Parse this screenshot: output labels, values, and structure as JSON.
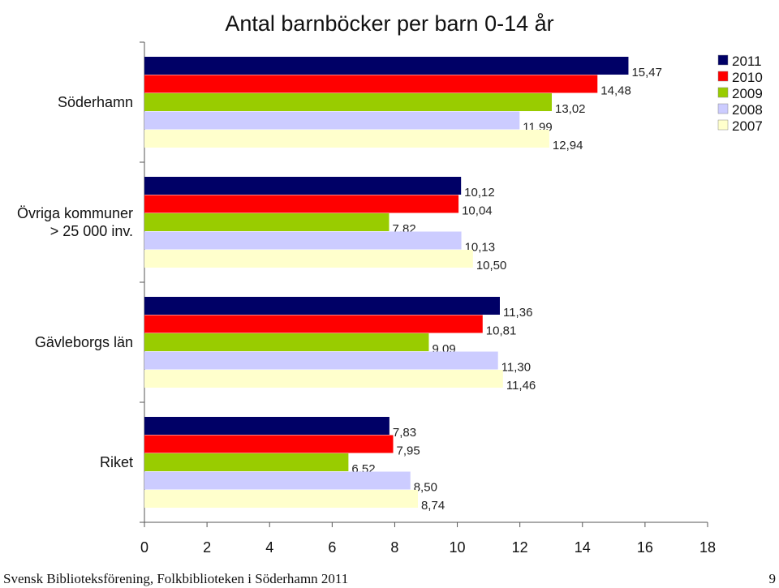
{
  "chart_data": {
    "type": "bar",
    "orientation": "horizontal",
    "title": "Antal barnböcker per barn 0-14 år",
    "categories": [
      "Söderhamn",
      "Övriga kommuner\n> 25 000 inv.",
      "Gävleborgs län",
      "Riket"
    ],
    "series": [
      {
        "name": "2011",
        "color": "#000066",
        "values": [
          15.47,
          10.12,
          11.36,
          7.83
        ],
        "labels": [
          "15,47",
          "10,12",
          "11,36",
          "7,83"
        ]
      },
      {
        "name": "2010",
        "color": "#ff0000",
        "values": [
          14.48,
          10.04,
          10.81,
          7.95
        ],
        "labels": [
          "14,48",
          "10,04",
          "10,81",
          "7,95"
        ]
      },
      {
        "name": "2009",
        "color": "#99cc00",
        "values": [
          13.02,
          7.82,
          9.09,
          6.52
        ],
        "labels": [
          "13,02",
          "7,82",
          "9,09",
          "6,52"
        ]
      },
      {
        "name": "2008",
        "color": "#ccccff",
        "values": [
          11.99,
          10.13,
          11.3,
          8.5
        ],
        "labels": [
          "11,99",
          "10,13",
          "11,30",
          "8,50"
        ]
      },
      {
        "name": "2007",
        "color": "#ffffcc",
        "values": [
          12.94,
          10.5,
          11.46,
          8.74
        ],
        "labels": [
          "12,94",
          "10,50",
          "11,46",
          "8,74"
        ]
      }
    ],
    "xlim": [
      0,
      18
    ],
    "xticks": [
      0,
      2,
      4,
      6,
      8,
      10,
      12,
      14,
      16,
      18
    ],
    "xtick_labels": [
      "0",
      "2",
      "4",
      "6",
      "8",
      "10",
      "12",
      "14",
      "16",
      "18"
    ],
    "grid": false,
    "legend_position": "top-right"
  },
  "footer": {
    "source": "Svensk Biblioteksförening, Folkbiblioteken i Söderhamn 2011",
    "page_number": "9"
  }
}
